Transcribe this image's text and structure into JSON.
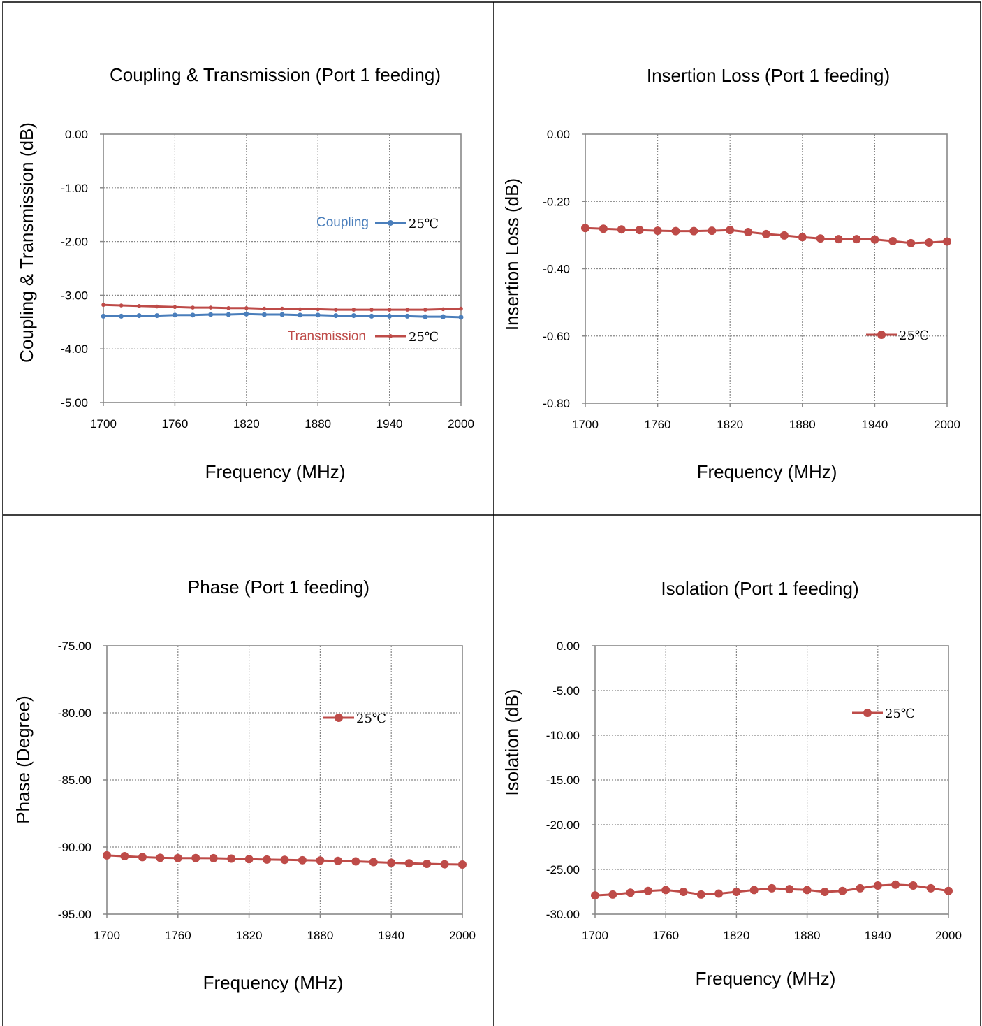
{
  "charts": [
    {
      "type": "line",
      "title": "Coupling & Transmission (Port 1 feeding)",
      "xlabel": "Frequency (MHz)",
      "ylabel": "Coupling & Transmission (dB)",
      "xlim": [
        1700,
        2000
      ],
      "ylim": [
        -5,
        0
      ],
      "xticks": [
        "1700",
        "1760",
        "1820",
        "1880",
        "1940",
        "2000"
      ],
      "yticks": [
        "0.00",
        "-1.00",
        "-2.00",
        "-3.00",
        "-4.00",
        "-5.00"
      ],
      "grid": true,
      "x": [
        1700,
        1715,
        1730,
        1745,
        1760,
        1775,
        1790,
        1805,
        1820,
        1835,
        1850,
        1865,
        1880,
        1895,
        1910,
        1925,
        1940,
        1955,
        1970,
        1985,
        2000
      ],
      "series": [
        {
          "name": "Coupling",
          "temp": "25℃",
          "color": "#4a7ebb",
          "marker_size": "small",
          "values": [
            -3.39,
            -3.39,
            -3.38,
            -3.38,
            -3.37,
            -3.37,
            -3.36,
            -3.36,
            -3.35,
            -3.36,
            -3.36,
            -3.37,
            -3.37,
            -3.38,
            -3.38,
            -3.39,
            -3.39,
            -3.39,
            -3.4,
            -3.4,
            -3.41
          ]
        },
        {
          "name": "Transmission",
          "temp": "25℃",
          "color": "#be4b48",
          "marker_size": "small",
          "values": [
            -3.18,
            -3.19,
            -3.2,
            -3.21,
            -3.22,
            -3.23,
            -3.23,
            -3.24,
            -3.24,
            -3.25,
            -3.25,
            -3.26,
            -3.26,
            -3.27,
            -3.27,
            -3.27,
            -3.27,
            -3.27,
            -3.27,
            -3.26,
            -3.25
          ]
        }
      ]
    },
    {
      "type": "line",
      "title": "Insertion Loss (Port 1 feeding)",
      "xlabel": "Frequency (MHz)",
      "ylabel": "Insertion Loss (dB)",
      "xlim": [
        1700,
        2000
      ],
      "ylim": [
        -0.8,
        0
      ],
      "xticks": [
        "1700",
        "1760",
        "1820",
        "1880",
        "1940",
        "2000"
      ],
      "yticks": [
        "0.00",
        "-0.20",
        "-0.40",
        "-0.60",
        "-0.80"
      ],
      "grid": true,
      "x": [
        1700,
        1715,
        1730,
        1745,
        1760,
        1775,
        1790,
        1805,
        1820,
        1835,
        1850,
        1865,
        1880,
        1895,
        1910,
        1925,
        1940,
        1955,
        1970,
        1985,
        2000
      ],
      "series": [
        {
          "name": "",
          "temp": "25℃",
          "color": "#be4b48",
          "marker_size": "large",
          "values": [
            -0.279,
            -0.281,
            -0.283,
            -0.285,
            -0.287,
            -0.288,
            -0.288,
            -0.287,
            -0.285,
            -0.291,
            -0.297,
            -0.301,
            -0.306,
            -0.31,
            -0.312,
            -0.312,
            -0.313,
            -0.318,
            -0.324,
            -0.322,
            -0.319
          ]
        }
      ]
    },
    {
      "type": "line",
      "title": "Phase (Port 1 feeding)",
      "xlabel": "Frequency (MHz)",
      "ylabel": "Phase (Degree)",
      "xlim": [
        1700,
        2000
      ],
      "ylim": [
        -95,
        -75
      ],
      "xticks": [
        "1700",
        "1760",
        "1820",
        "1880",
        "1940",
        "2000"
      ],
      "yticks": [
        "-75.00",
        "-80.00",
        "-85.00",
        "-90.00",
        "-95.00"
      ],
      "grid": true,
      "x": [
        1700,
        1715,
        1730,
        1745,
        1760,
        1775,
        1790,
        1805,
        1820,
        1835,
        1850,
        1865,
        1880,
        1895,
        1910,
        1925,
        1940,
        1955,
        1970,
        1985,
        2000
      ],
      "series": [
        {
          "name": "",
          "temp": "25℃",
          "color": "#be4b48",
          "marker_size": "large",
          "values": [
            -90.62,
            -90.68,
            -90.75,
            -90.8,
            -90.82,
            -90.82,
            -90.83,
            -90.86,
            -90.9,
            -90.93,
            -90.95,
            -90.98,
            -91.0,
            -91.03,
            -91.07,
            -91.12,
            -91.17,
            -91.21,
            -91.25,
            -91.28,
            -91.3
          ]
        }
      ]
    },
    {
      "type": "line",
      "title": "Isolation (Port 1 feeding)",
      "xlabel": "Frequency (MHz)",
      "ylabel": "Isolation (dB)",
      "xlim": [
        1700,
        2000
      ],
      "ylim": [
        -30,
        0
      ],
      "xticks": [
        "1700",
        "1760",
        "1820",
        "1880",
        "1940",
        "2000"
      ],
      "yticks": [
        "0.00",
        "-5.00",
        "-10.00",
        "-15.00",
        "-20.00",
        "-25.00",
        "-30.00"
      ],
      "grid": true,
      "x": [
        1700,
        1715,
        1730,
        1745,
        1760,
        1775,
        1790,
        1805,
        1820,
        1835,
        1850,
        1865,
        1880,
        1895,
        1910,
        1925,
        1940,
        1955,
        1970,
        1985,
        2000
      ],
      "series": [
        {
          "name": "",
          "temp": "25℃",
          "color": "#be4b48",
          "marker_size": "large",
          "values": [
            -27.9,
            -27.8,
            -27.6,
            -27.4,
            -27.3,
            -27.5,
            -27.8,
            -27.7,
            -27.5,
            -27.3,
            -27.1,
            -27.2,
            -27.3,
            -27.5,
            -27.4,
            -27.1,
            -26.8,
            -26.7,
            -26.8,
            -27.1,
            -27.4
          ]
        }
      ]
    }
  ]
}
